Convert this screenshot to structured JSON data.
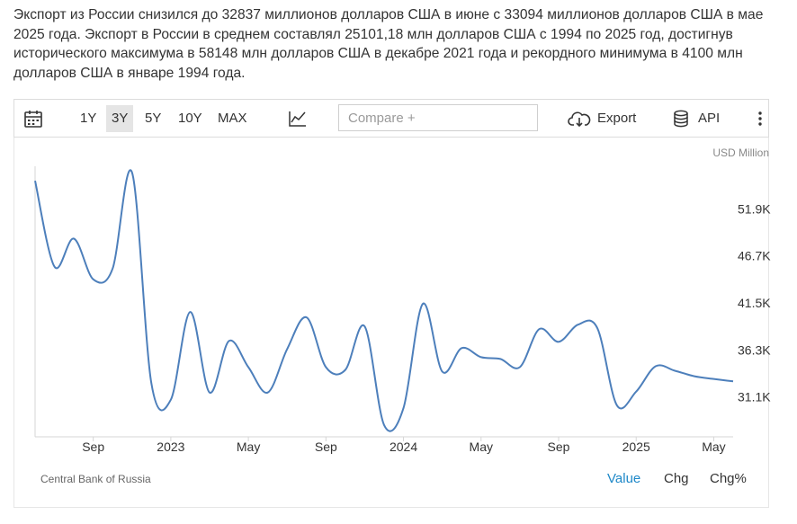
{
  "description": "Экспорт из России снизился до 32837 миллионов долларов США в июне с 33094 миллионов долларов США в мае 2025 года. Экспорт в России в среднем составлял 25101,18 млн долларов США с 1994 по 2025 год, достигнув исторического максимума в 58148 млн долларов США в декабре 2021 года и рекордного минимума в 4100 млн долларов США в январе 1994 года.",
  "toolbar": {
    "ranges": [
      "1Y",
      "3Y",
      "5Y",
      "10Y",
      "MAX"
    ],
    "active_range": "3Y",
    "compare_placeholder": "Compare +",
    "export_label": "Export",
    "api_label": "API"
  },
  "unit_label": "USD Million",
  "source": "Central Bank of Russia",
  "modes": [
    "Value",
    "Chg",
    "Chg%"
  ],
  "active_mode": "Value",
  "colors": {
    "line": "#4d7fbb",
    "active_mode": "#1e88c8",
    "axis": "#d6d6d6"
  },
  "chart_data": {
    "type": "line",
    "ylabel": "USD Million",
    "y_ticks": [
      "51.9K",
      "46.7K",
      "41.5K",
      "36.3K",
      "31.1K"
    ],
    "y_tick_values": [
      51900,
      46700,
      41500,
      36300,
      31100
    ],
    "x_ticks": [
      "Sep",
      "2023",
      "May",
      "Sep",
      "2024",
      "May",
      "Sep",
      "2025",
      "May"
    ],
    "x_tick_dates": [
      "2022-09",
      "2023-01",
      "2023-05",
      "2023-09",
      "2024-01",
      "2024-05",
      "2024-09",
      "2025-01",
      "2025-05"
    ],
    "x_range": [
      "2022-06",
      "2025-06"
    ],
    "ylim": [
      26700,
      56600
    ],
    "series": [
      {
        "x": [
          "2022-06",
          "2022-07",
          "2022-08",
          "2022-09",
          "2022-10",
          "2022-11",
          "2022-12",
          "2023-01",
          "2023-02",
          "2023-03",
          "2023-04",
          "2023-05",
          "2023-06",
          "2023-07",
          "2023-08",
          "2023-09",
          "2023-10",
          "2023-11",
          "2023-12",
          "2024-01",
          "2024-02",
          "2024-03",
          "2024-04",
          "2024-05",
          "2024-06",
          "2024-07",
          "2024-08",
          "2024-09",
          "2024-10",
          "2024-11",
          "2024-12",
          "2025-01",
          "2025-02",
          "2025-03",
          "2025-04",
          "2025-05",
          "2025-06"
        ],
        "values": [
          55000,
          45500,
          48600,
          44100,
          45300,
          55900,
          32600,
          30800,
          40500,
          31600,
          37300,
          34400,
          31600,
          36400,
          39900,
          34400,
          34100,
          38900,
          28000,
          29900,
          41400,
          33900,
          36500,
          35500,
          35300,
          34400,
          38600,
          37200,
          39100,
          38700,
          30200,
          31700,
          34500,
          34000,
          33400,
          33094,
          32837
        ]
      }
    ]
  }
}
